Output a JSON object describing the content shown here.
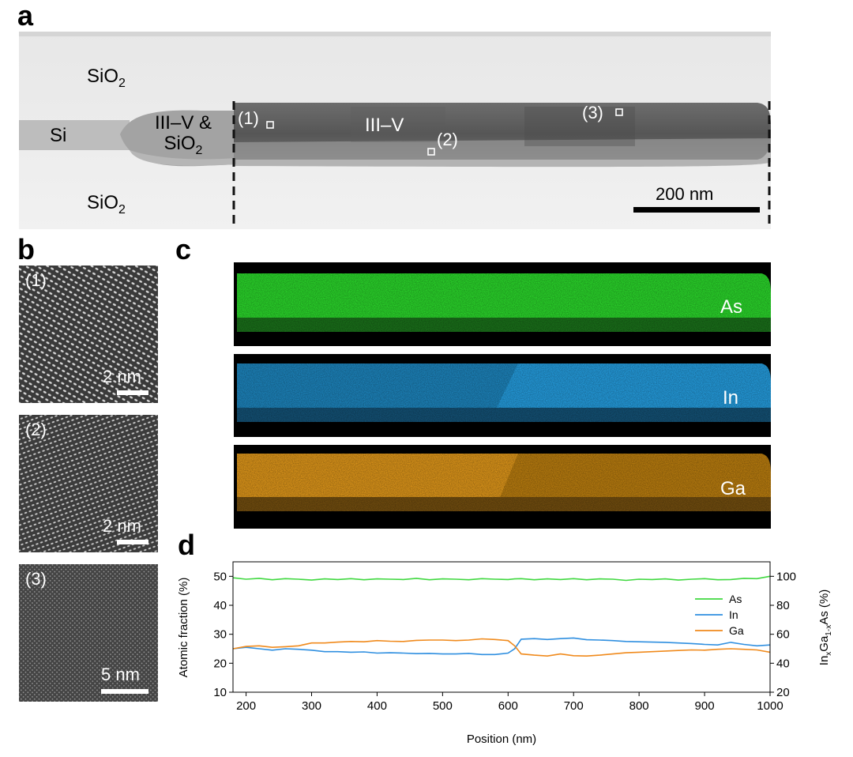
{
  "figure": {
    "panels": {
      "a": {
        "letter": "a",
        "regions": {
          "sio2_top": "SiO",
          "sio2_top_sub": "2",
          "si": "Si",
          "iiiv_sio2_line1": "III–V &",
          "iiiv_sio2_line2": "SiO",
          "iiiv_sio2_sub": "2",
          "iiiv": "III–V",
          "sio2_bottom": "SiO",
          "sio2_bottom_sub": "2"
        },
        "markers": [
          "(1)",
          "(2)",
          "(3)"
        ],
        "scalebar": "200 nm"
      },
      "b": {
        "letter": "b",
        "images": [
          {
            "label": "(1)",
            "scalebar": "2 nm"
          },
          {
            "label": "(2)",
            "scalebar": "2 nm"
          },
          {
            "label": "(3)",
            "scalebar": "5 nm"
          }
        ]
      },
      "c": {
        "letter": "c",
        "maps": [
          {
            "element": "As",
            "color": "#2ee82e"
          },
          {
            "element": "In",
            "color": "#27a9f0"
          },
          {
            "element": "Ga",
            "color": "#f0a21c"
          }
        ]
      },
      "d": {
        "letter": "d"
      }
    }
  },
  "chart_data": {
    "type": "line",
    "title": "",
    "xlabel": "Position (nm)",
    "ylabel": "Atomic fraction (%)",
    "y2label_main": "In",
    "y2label_sub1": "x",
    "y2label_mid": "Ga",
    "y2label_sub2": "1-x",
    "y2label_end": "As (%)",
    "xlim": [
      180,
      1000
    ],
    "ylim": [
      10,
      55
    ],
    "y2lim": [
      20,
      110
    ],
    "xticks": [
      200,
      300,
      400,
      500,
      600,
      700,
      800,
      900,
      1000
    ],
    "yticks": [
      10,
      20,
      30,
      40,
      50
    ],
    "y2ticks": [
      20,
      40,
      60,
      80,
      100
    ],
    "legend_position": "right",
    "grid": false,
    "x": [
      180,
      200,
      220,
      240,
      260,
      280,
      300,
      320,
      340,
      360,
      380,
      400,
      420,
      440,
      460,
      480,
      500,
      520,
      540,
      560,
      580,
      600,
      610,
      620,
      640,
      660,
      680,
      700,
      720,
      740,
      760,
      780,
      800,
      820,
      840,
      860,
      880,
      900,
      920,
      940,
      960,
      980,
      1000
    ],
    "series": [
      {
        "name": "As",
        "color": "#3fd83f",
        "values": [
          49.5,
          49,
          49.3,
          48.8,
          49.2,
          49,
          48.7,
          49.1,
          48.9,
          49.2,
          48.8,
          49.1,
          49,
          48.9,
          49.3,
          48.8,
          49.1,
          49,
          48.8,
          49.2,
          49,
          48.9,
          49.1,
          49.2,
          48.8,
          49.1,
          48.9,
          49.2,
          48.8,
          49.1,
          49,
          48.6,
          49,
          48.9,
          49.1,
          48.7,
          49,
          49.2,
          48.8,
          48.9,
          49.3,
          49.2,
          50
        ]
      },
      {
        "name": "In",
        "color": "#2f8fe0",
        "values": [
          25,
          25.5,
          25,
          24.5,
          25,
          24.8,
          24.5,
          24,
          24,
          23.8,
          23.9,
          23.5,
          23.6,
          23.5,
          23.3,
          23.4,
          23.2,
          23.2,
          23.4,
          23,
          23,
          23.5,
          25,
          28.3,
          28.5,
          28.2,
          28.5,
          28.7,
          28.1,
          28,
          27.8,
          27.5,
          27.4,
          27.3,
          27.2,
          27,
          26.8,
          26.5,
          26.3,
          27.2,
          26.5,
          26,
          26.3
        ]
      },
      {
        "name": "Ga",
        "color": "#f08a1c",
        "values": [
          25,
          25.8,
          26,
          25.5,
          25.7,
          26,
          27,
          27,
          27.3,
          27.5,
          27.4,
          27.8,
          27.6,
          27.5,
          27.9,
          28,
          28,
          27.8,
          28,
          28.4,
          28.2,
          27.8,
          26,
          23.2,
          22.8,
          22.5,
          23.2,
          22.6,
          22.5,
          22.8,
          23.2,
          23.6,
          23.8,
          24,
          24.2,
          24.4,
          24.6,
          24.5,
          24.8,
          25,
          24.8,
          24.6,
          23.8
        ]
      }
    ]
  }
}
